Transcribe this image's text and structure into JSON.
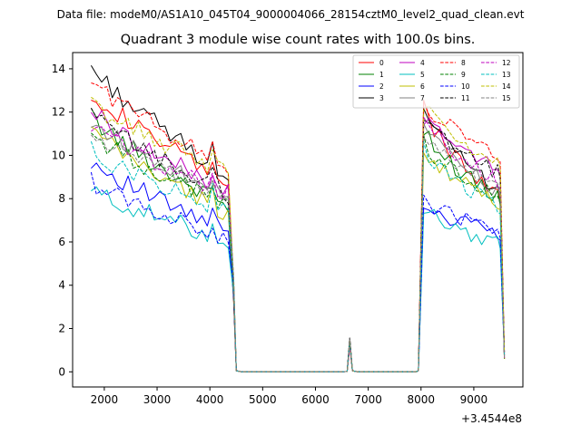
{
  "suptitle": "Data file: modeM0/AS1A10_045T04_9000004066_28154cztM0_level2_quad_clean.evt",
  "chart_data": {
    "type": "line",
    "title": "Quadrant 3 module wise count rates with 100.0s bins.",
    "xlabel": "",
    "ylabel": "",
    "x_offset_label": "+3.4544e8",
    "xlim": [
      1400,
      9930
    ],
    "ylim": [
      -0.7,
      14.75
    ],
    "xticks": [
      2000,
      3000,
      4000,
      5000,
      6000,
      7000,
      8000,
      9000
    ],
    "xtick_labels": [
      "2000",
      "3000",
      "4000",
      "5000",
      "6000",
      "7000",
      "8000",
      "9000"
    ],
    "yticks": [
      0,
      2,
      4,
      6,
      8,
      10,
      12,
      14
    ],
    "ytick_labels": [
      "0",
      "2",
      "4",
      "6",
      "8",
      "10",
      "12",
      "14"
    ],
    "legend_position": "top-right",
    "segment1_x_range": [
      1750,
      4350
    ],
    "segment1_step": 100,
    "segment2_x_range": [
      8050,
      9450
    ],
    "segment2_step": 100,
    "series": [
      {
        "name": "0",
        "color": "#ff0000",
        "dash": "solid",
        "s1_start": 13.0,
        "s1_end": 8.7,
        "s2_start": 12.2,
        "s2_end": 8.2
      },
      {
        "name": "1",
        "color": "#008000",
        "dash": "solid",
        "s1_start": 11.8,
        "s1_end": 7.6,
        "s2_start": 11.3,
        "s2_end": 8.0
      },
      {
        "name": "2",
        "color": "#0000ff",
        "dash": "solid",
        "s1_start": 9.8,
        "s1_end": 6.4,
        "s2_start": 7.8,
        "s2_end": 6.4
      },
      {
        "name": "3",
        "color": "#000000",
        "dash": "solid",
        "s1_start": 14.1,
        "s1_end": 9.1,
        "s2_start": 12.0,
        "s2_end": 8.5
      },
      {
        "name": "4",
        "color": "#bf00bf",
        "dash": "solid",
        "s1_start": 12.1,
        "s1_end": 8.3,
        "s2_start": 11.8,
        "s2_end": 9.4
      },
      {
        "name": "5",
        "color": "#00bfbf",
        "dash": "solid",
        "s1_start": 8.4,
        "s1_end": 6.1,
        "s2_start": 7.5,
        "s2_end": 6.0
      },
      {
        "name": "6",
        "color": "#bfbf00",
        "dash": "solid",
        "s1_start": 11.2,
        "s1_end": 7.3,
        "s2_start": 10.3,
        "s2_end": 7.8
      },
      {
        "name": "7",
        "color": "#808080",
        "dash": "solid",
        "s1_start": 11.6,
        "s1_end": 8.2,
        "s2_start": 11.6,
        "s2_end": 8.4
      },
      {
        "name": "8",
        "color": "#ff0000",
        "dash": "dashed",
        "s1_start": 13.5,
        "s1_end": 9.5,
        "s2_start": 12.6,
        "s2_end": 10.0
      },
      {
        "name": "9",
        "color": "#008000",
        "dash": "dashed",
        "s1_start": 11.0,
        "s1_end": 7.7,
        "s2_start": 10.6,
        "s2_end": 8.1
      },
      {
        "name": "10",
        "color": "#0000ff",
        "dash": "dashed",
        "s1_start": 8.8,
        "s1_end": 6.2,
        "s2_start": 8.0,
        "s2_end": 6.5
      },
      {
        "name": "11",
        "color": "#000000",
        "dash": "dashed",
        "s1_start": 11.9,
        "s1_end": 8.2,
        "s2_start": 11.8,
        "s2_end": 9.2
      },
      {
        "name": "12",
        "color": "#bf00bf",
        "dash": "dashed",
        "s1_start": 11.4,
        "s1_end": 8.2,
        "s2_start": 11.7,
        "s2_end": 8.8
      },
      {
        "name": "13",
        "color": "#00bfbf",
        "dash": "dashed",
        "s1_start": 10.2,
        "s1_end": 7.4,
        "s2_start": 10.5,
        "s2_end": 7.6
      },
      {
        "name": "14",
        "color": "#bfbf00",
        "dash": "dashed",
        "s1_start": 12.4,
        "s1_end": 9.2,
        "s2_start": 12.4,
        "s2_end": 9.7
      },
      {
        "name": "15",
        "color": "#808080",
        "dash": "dashed",
        "s1_start": 11.0,
        "s1_end": 8.0,
        "s2_start": 11.2,
        "s2_end": 8.6
      }
    ]
  }
}
